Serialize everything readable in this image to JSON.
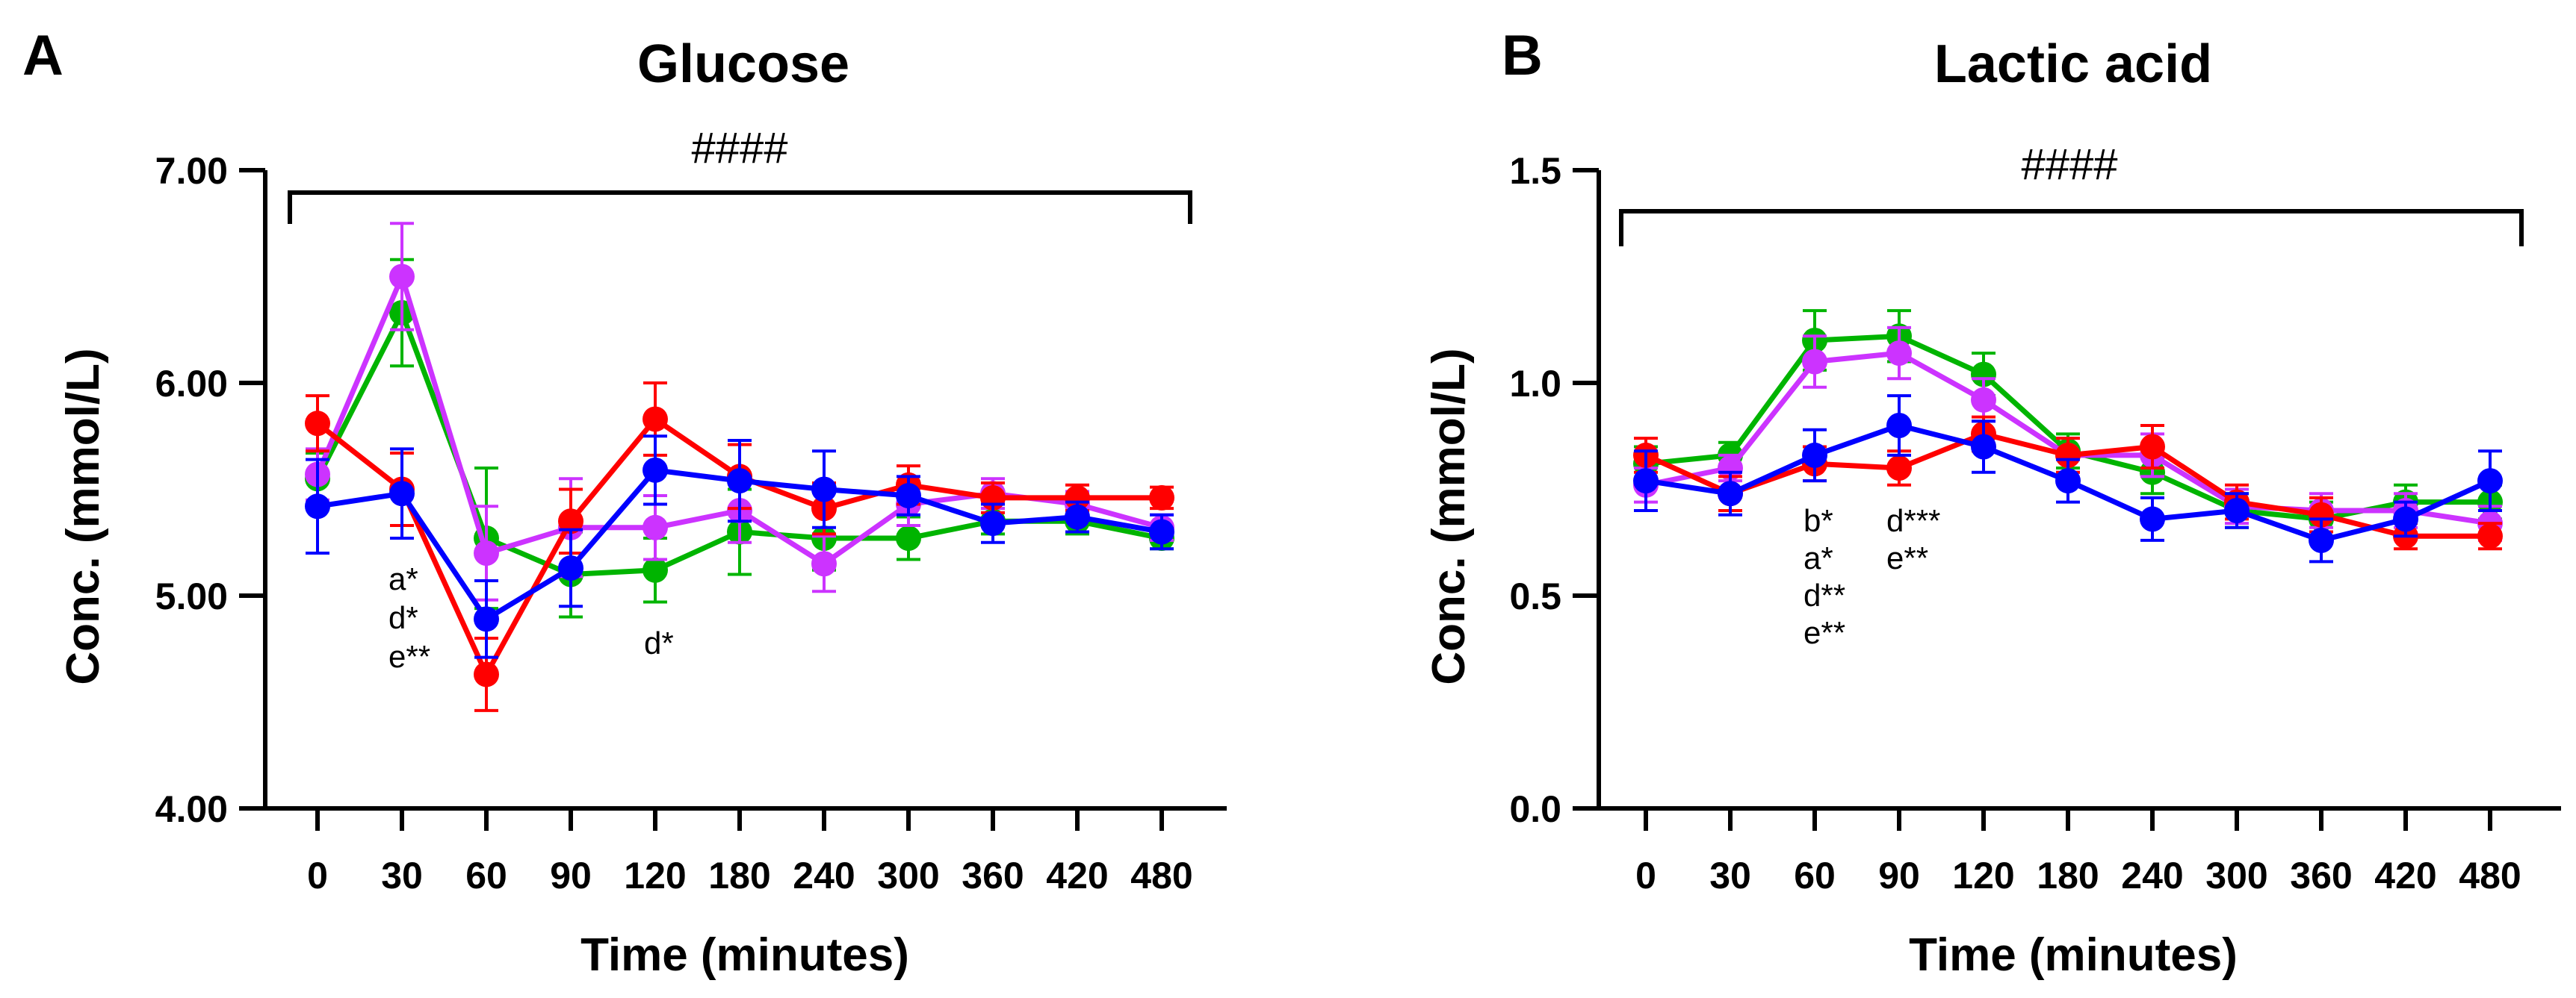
{
  "chart_data": [
    {
      "panel_label": "A",
      "type": "line",
      "title": "Glucose",
      "xlabel": "Time (minutes)",
      "ylabel": "Conc. (mmol/L)",
      "categories": [
        "0",
        "30",
        "60",
        "90",
        "120",
        "180",
        "240",
        "300",
        "360",
        "420",
        "480"
      ],
      "yticks": [
        "4.00",
        "5.00",
        "6.00",
        "7.00"
      ],
      "ylim": [
        4,
        7
      ],
      "significance": "####",
      "annotations": [
        {
          "x": "30",
          "lines": [
            "a*",
            "d*",
            "e**"
          ]
        },
        {
          "x": "120",
          "lines": [
            "d*"
          ]
        }
      ],
      "series": [
        {
          "color": "#00b400",
          "values": [
            5.55,
            6.33,
            5.27,
            5.1,
            5.12,
            5.3,
            5.27,
            5.27,
            5.35,
            5.35,
            5.27
          ],
          "errors": [
            0.12,
            0.25,
            0.33,
            0.2,
            0.15,
            0.2,
            0.15,
            0.1,
            0.06,
            0.06,
            0.05
          ]
        },
        {
          "color": "#cc33ff",
          "values": [
            5.57,
            6.5,
            5.2,
            5.32,
            5.32,
            5.4,
            5.15,
            5.43,
            5.48,
            5.43,
            5.32
          ],
          "errors": [
            0.12,
            0.25,
            0.22,
            0.23,
            0.15,
            0.15,
            0.13,
            0.1,
            0.07,
            0.06,
            0.06
          ]
        },
        {
          "color": "#ff0000",
          "values": [
            5.81,
            5.5,
            4.63,
            5.35,
            5.83,
            5.56,
            5.41,
            5.52,
            5.46,
            5.46,
            5.46
          ],
          "errors": [
            0.13,
            0.17,
            0.17,
            0.15,
            0.17,
            0.15,
            0.12,
            0.09,
            0.07,
            0.06,
            0.05
          ]
        },
        {
          "color": "#0000ff",
          "values": [
            5.42,
            5.48,
            4.89,
            5.13,
            5.59,
            5.54,
            5.5,
            5.47,
            5.34,
            5.37,
            5.3
          ],
          "errors": [
            0.22,
            0.21,
            0.18,
            0.18,
            0.16,
            0.19,
            0.18,
            0.09,
            0.09,
            0.07,
            0.08
          ]
        }
      ]
    },
    {
      "panel_label": "B",
      "type": "line",
      "title": "Lactic acid",
      "xlabel": "Time (minutes)",
      "ylabel": "Conc. (mmol/L)",
      "categories": [
        "0",
        "30",
        "60",
        "90",
        "120",
        "180",
        "240",
        "300",
        "360",
        "420",
        "480"
      ],
      "yticks": [
        "0.0",
        "0.5",
        "1.0",
        "1.5"
      ],
      "ylim": [
        0,
        1.5
      ],
      "significance": "####",
      "annotations": [
        {
          "x": "60",
          "lines": [
            "b*",
            "a*",
            "d**",
            "e**"
          ]
        },
        {
          "x": "90",
          "lines": [
            "d***",
            "e**"
          ]
        }
      ],
      "series": [
        {
          "color": "#00b400",
          "values": [
            0.81,
            0.83,
            1.1,
            1.11,
            1.02,
            0.84,
            0.79,
            0.7,
            0.68,
            0.72,
            0.72
          ],
          "errors": [
            0.04,
            0.03,
            0.07,
            0.06,
            0.05,
            0.04,
            0.05,
            0.04,
            0.04,
            0.04,
            0.04
          ]
        },
        {
          "color": "#cc33ff",
          "values": [
            0.76,
            0.8,
            1.05,
            1.07,
            0.96,
            0.83,
            0.83,
            0.71,
            0.7,
            0.7,
            0.67
          ],
          "errors": [
            0.04,
            0.03,
            0.06,
            0.06,
            0.05,
            0.04,
            0.05,
            0.04,
            0.04,
            0.04,
            0.04
          ]
        },
        {
          "color": "#ff0000",
          "values": [
            0.83,
            0.74,
            0.81,
            0.8,
            0.88,
            0.83,
            0.85,
            0.72,
            0.69,
            0.64,
            0.64
          ],
          "errors": [
            0.04,
            0.04,
            0.04,
            0.04,
            0.04,
            0.04,
            0.05,
            0.04,
            0.04,
            0.03,
            0.03
          ]
        },
        {
          "color": "#0000ff",
          "values": [
            0.77,
            0.74,
            0.83,
            0.9,
            0.85,
            0.77,
            0.68,
            0.7,
            0.63,
            0.68,
            0.77
          ],
          "errors": [
            0.07,
            0.05,
            0.06,
            0.07,
            0.06,
            0.05,
            0.05,
            0.04,
            0.05,
            0.04,
            0.07
          ]
        }
      ]
    }
  ]
}
